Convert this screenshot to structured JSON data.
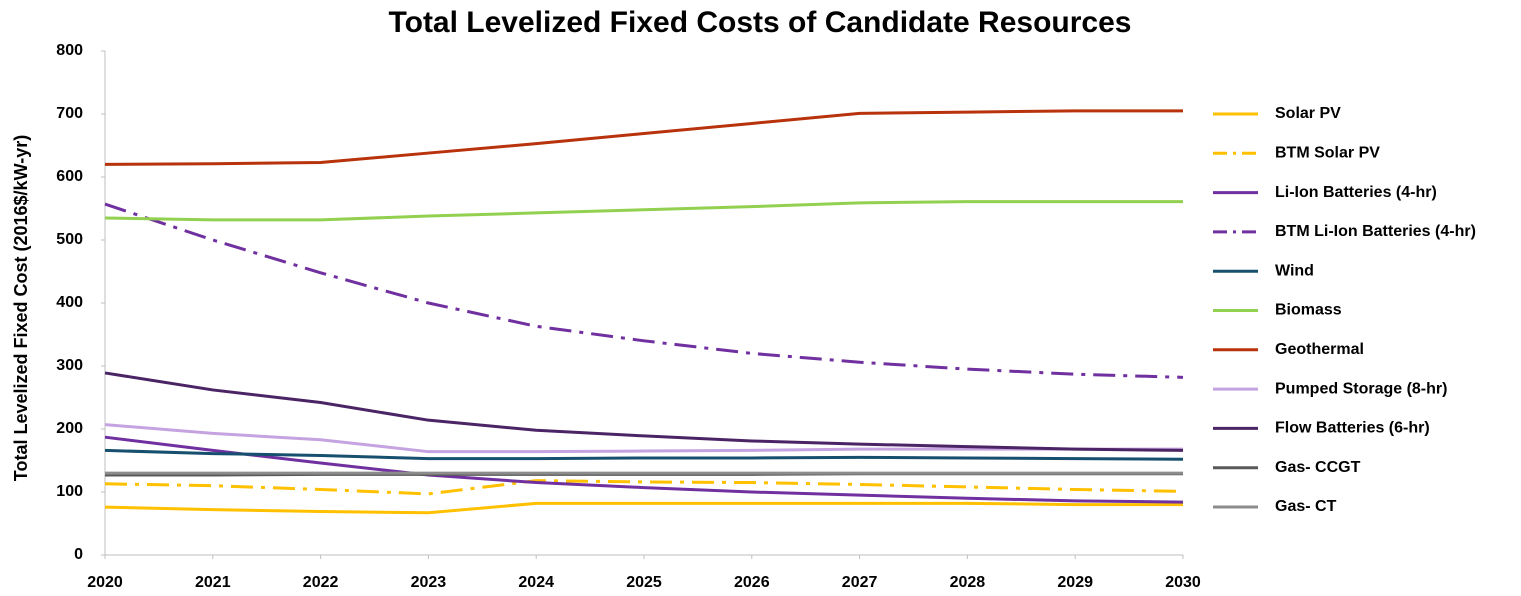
{
  "chart_data": {
    "type": "line",
    "title": "Total Levelized Fixed Costs of Candidate Resources",
    "y_label": "Total Levelized Fixed Cost (2016$/kW-yr)",
    "x": [
      2020,
      2021,
      2022,
      2023,
      2024,
      2025,
      2026,
      2027,
      2028,
      2029,
      2030
    ],
    "xlim": [
      2020,
      2030
    ],
    "xticks": [
      2020,
      2021,
      2022,
      2023,
      2024,
      2025,
      2026,
      2027,
      2028,
      2029,
      2030
    ],
    "ylim": [
      0,
      800
    ],
    "yticks": [
      0,
      100,
      200,
      300,
      400,
      500,
      600,
      700,
      800
    ],
    "grid": false,
    "legend": "right",
    "series": [
      {
        "name": "Solar PV",
        "color": "#FFC000",
        "style": "solid",
        "values": [
          76,
          72,
          69,
          67,
          82,
          82,
          82,
          82,
          82,
          80,
          80
        ]
      },
      {
        "name": "BTM Solar PV",
        "color": "#FFC000",
        "style": "dash-dot",
        "values": [
          113,
          110,
          104,
          97,
          118,
          116,
          115,
          112,
          108,
          104,
          101
        ]
      },
      {
        "name": "Li-Ion Batteries (4-hr)",
        "color": "#7030A0",
        "style": "solid",
        "values": [
          187,
          166,
          146,
          127,
          115,
          107,
          100,
          95,
          90,
          86,
          84
        ]
      },
      {
        "name": "BTM Li-Ion Batteries (4-hr)",
        "color": "#7030A0",
        "style": "dash-dot",
        "values": [
          557,
          500,
          448,
          400,
          363,
          340,
          320,
          306,
          295,
          287,
          282
        ]
      },
      {
        "name": "Wind",
        "color": "#16506E",
        "style": "solid",
        "values": [
          166,
          161,
          158,
          153,
          153,
          154,
          154,
          155,
          154,
          153,
          152
        ]
      },
      {
        "name": "Biomass",
        "color": "#92D050",
        "style": "solid",
        "values": [
          535,
          532,
          532,
          538,
          543,
          548,
          553,
          559,
          561,
          561,
          561
        ]
      },
      {
        "name": "Geothermal",
        "color": "#B8320C",
        "style": "solid",
        "values": [
          620,
          621,
          623,
          638,
          653,
          669,
          685,
          701,
          703,
          705,
          705
        ]
      },
      {
        "name": "Pumped Storage (8-hr)",
        "color": "#C5A3E0",
        "style": "solid",
        "values": [
          207,
          193,
          183,
          164,
          164,
          165,
          166,
          168,
          168,
          168,
          168
        ]
      },
      {
        "name": "Flow Batteries (6-hr)",
        "color": "#4B2466",
        "style": "solid",
        "values": [
          289,
          262,
          242,
          214,
          198,
          189,
          181,
          176,
          172,
          168,
          166
        ]
      },
      {
        "name": "Gas- CCGT",
        "color": "#595959",
        "style": "solid",
        "values": [
          127,
          127,
          128,
          128,
          128,
          128,
          128,
          129,
          129,
          129,
          129
        ]
      },
      {
        "name": "Gas- CT",
        "color": "#8C8C8C",
        "style": "solid",
        "values": [
          130,
          130,
          130,
          130,
          130,
          130,
          130,
          130,
          130,
          130,
          130
        ]
      }
    ]
  }
}
